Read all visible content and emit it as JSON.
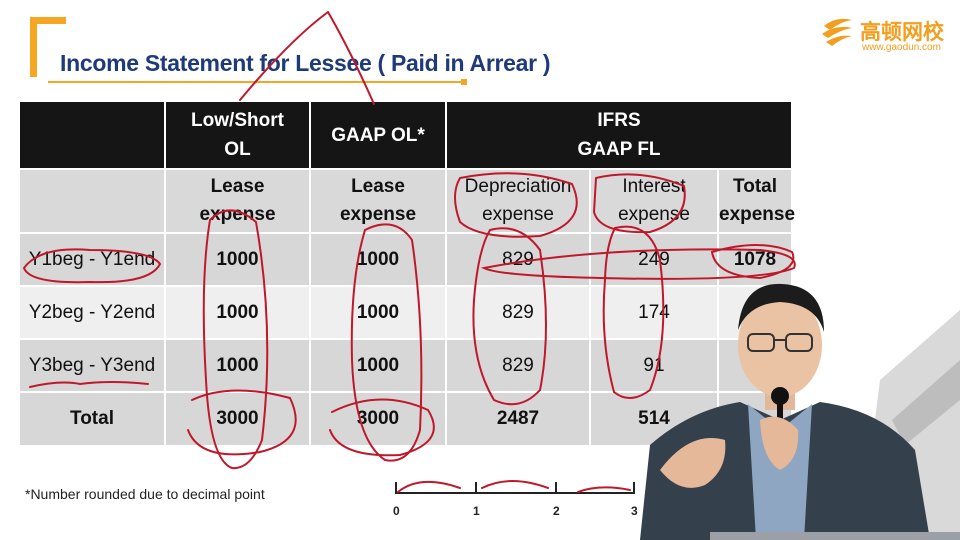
{
  "title": "Income Statement for Lessee ( Paid in Arrear )",
  "logo": {
    "name": "高顿网校",
    "url": "www.gaodun.com"
  },
  "table": {
    "group_headers": {
      "low_short": [
        "Low/Short",
        "OL"
      ],
      "gaap_ol": "GAAP OL*",
      "ifrs": [
        "IFRS",
        "GAAP FL"
      ]
    },
    "sub_headers": {
      "lease_expense": [
        "Lease",
        "expense"
      ],
      "depreciation": [
        "Depreciation",
        "expense"
      ],
      "interest": [
        "Interest",
        "expense"
      ],
      "total": [
        "Total",
        "expense"
      ]
    },
    "rows": [
      {
        "label": "Y1beg - Y1end",
        "low_short": "1000",
        "gaap_ol": "1000",
        "depreciation": "829",
        "interest": "249",
        "total": "1078"
      },
      {
        "label": "Y2beg - Y2end",
        "low_short": "1000",
        "gaap_ol": "1000",
        "depreciation": "829",
        "interest": "174",
        "total": ""
      },
      {
        "label": "Y3beg - Y3end",
        "low_short": "1000",
        "gaap_ol": "1000",
        "depreciation": "829",
        "interest": "91",
        "total": ""
      }
    ],
    "total_row": {
      "label": "Total",
      "low_short": "3000",
      "gaap_ol": "3000",
      "depreciation": "2487",
      "interest": "514",
      "total": ""
    }
  },
  "footnote": "*Number rounded due to decimal point",
  "timeline": [
    "0",
    "1",
    "2",
    "3"
  ],
  "colors": {
    "accent": "#f5a623",
    "title": "#1e3a78",
    "annotation": "#c0182b",
    "header_bg": "#151515"
  }
}
